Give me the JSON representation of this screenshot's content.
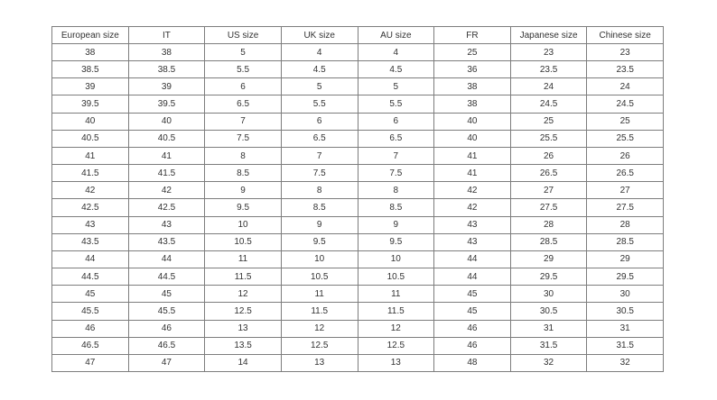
{
  "colors": {
    "border": "#7d7d7d",
    "text": "#333333",
    "background": "#ffffff"
  },
  "chart_data": {
    "type": "table",
    "title": "",
    "headers": [
      "European size",
      "IT",
      "US size",
      "UK size",
      "AU size",
      "FR",
      "Japanese size",
      "Chinese size"
    ],
    "rows": [
      [
        "38",
        "38",
        "5",
        "4",
        "4",
        "25",
        "23",
        "23"
      ],
      [
        "38.5",
        "38.5",
        "5.5",
        "4.5",
        "4.5",
        "36",
        "23.5",
        "23.5"
      ],
      [
        "39",
        "39",
        "6",
        "5",
        "5",
        "38",
        "24",
        "24"
      ],
      [
        "39.5",
        "39.5",
        "6.5",
        "5.5",
        "5.5",
        "38",
        "24.5",
        "24.5"
      ],
      [
        "40",
        "40",
        "7",
        "6",
        "6",
        "40",
        "25",
        "25"
      ],
      [
        "40.5",
        "40.5",
        "7.5",
        "6.5",
        "6.5",
        "40",
        "25.5",
        "25.5"
      ],
      [
        "41",
        "41",
        "8",
        "7",
        "7",
        "41",
        "26",
        "26"
      ],
      [
        "41.5",
        "41.5",
        "8.5",
        "7.5",
        "7.5",
        "41",
        "26.5",
        "26.5"
      ],
      [
        "42",
        "42",
        "9",
        "8",
        "8",
        "42",
        "27",
        "27"
      ],
      [
        "42.5",
        "42.5",
        "9.5",
        "8.5",
        "8.5",
        "42",
        "27.5",
        "27.5"
      ],
      [
        "43",
        "43",
        "10",
        "9",
        "9",
        "43",
        "28",
        "28"
      ],
      [
        "43.5",
        "43.5",
        "10.5",
        "9.5",
        "9.5",
        "43",
        "28.5",
        "28.5"
      ],
      [
        "44",
        "44",
        "11",
        "10",
        "10",
        "44",
        "29",
        "29"
      ],
      [
        "44.5",
        "44.5",
        "11.5",
        "10.5",
        "10.5",
        "44",
        "29.5",
        "29.5"
      ],
      [
        "45",
        "45",
        "12",
        "11",
        "11",
        "45",
        "30",
        "30"
      ],
      [
        "45.5",
        "45.5",
        "12.5",
        "11.5",
        "11.5",
        "45",
        "30.5",
        "30.5"
      ],
      [
        "46",
        "46",
        "13",
        "12",
        "12",
        "46",
        "31",
        "31"
      ],
      [
        "46.5",
        "46.5",
        "13.5",
        "12.5",
        "12.5",
        "46",
        "31.5",
        "31.5"
      ],
      [
        "47",
        "47",
        "14",
        "13",
        "13",
        "48",
        "32",
        "32"
      ]
    ]
  }
}
